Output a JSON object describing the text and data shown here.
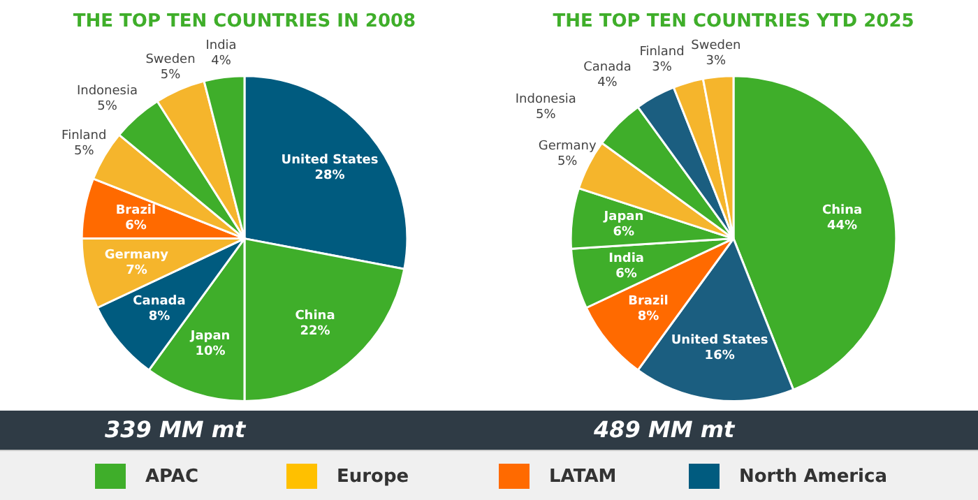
{
  "chart_data": [
    {
      "type": "pie",
      "title": "THE TOP TEN COUNTRIES IN 2008",
      "categories": [
        "United States",
        "China",
        "Japan",
        "Canada",
        "Germany",
        "Brazil",
        "Finland",
        "Indonesia",
        "Sweden",
        "India"
      ],
      "values": [
        28,
        22,
        10,
        8,
        7,
        6,
        5,
        5,
        5,
        4
      ],
      "value_labels": [
        "28%",
        "22%",
        "10%",
        "8%",
        "7%",
        "6%",
        "5%",
        "5%",
        "5%",
        "4%"
      ],
      "colors": [
        "#005b7f",
        "#3fae2a",
        "#3fae2a",
        "#005b7f",
        "#f5b52c",
        "#ff6a00",
        "#f5b52c",
        "#3fae2a",
        "#f5b52c",
        "#3fae2a"
      ],
      "annotations": [
        "339 MM mt"
      ]
    },
    {
      "type": "pie",
      "title": "THE TOP TEN COUNTRIES YTD 2025",
      "categories": [
        "China",
        "United States",
        "Brazil",
        "India",
        "Japan",
        "Germany",
        "Indonesia",
        "Canada",
        "Finland",
        "Sweden"
      ],
      "values": [
        44,
        16,
        8,
        6,
        6,
        5,
        5,
        4,
        3,
        3
      ],
      "value_labels": [
        "44%",
        "16%",
        "8%",
        "6%",
        "6%",
        "5%",
        "5%",
        "4%",
        "3%",
        "3%"
      ],
      "colors": [
        "#3fae2a",
        "#1b5e80",
        "#ff6a00",
        "#3fae2a",
        "#3fae2a",
        "#f5b52c",
        "#3fae2a",
        "#1b5e80",
        "#f5b52c",
        "#f5b52c"
      ],
      "annotations": [
        "489 MM mt"
      ]
    },
    {
      "type": "other",
      "categories": [
        "APAC",
        "Europe",
        "LATAM",
        "North America"
      ],
      "colors": [
        "#3fae2a",
        "#ffc000",
        "#ff6a00",
        "#005b7f"
      ]
    }
  ]
}
